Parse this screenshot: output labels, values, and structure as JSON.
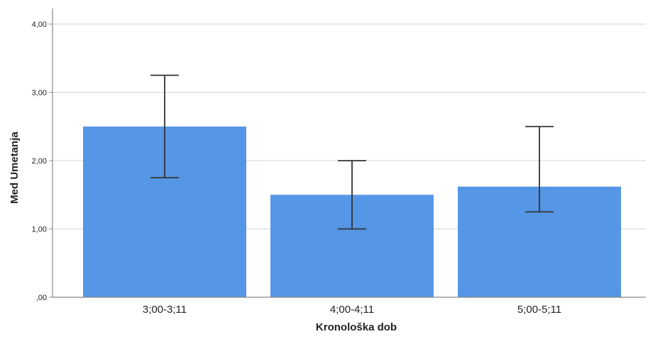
{
  "chart_data": {
    "type": "bar",
    "xlabel": "Kronološka dob",
    "ylabel": "Med Umetanja",
    "categories": [
      "3;00-3;11",
      "4;00-4;11",
      "5;00-5;11"
    ],
    "values": [
      2.5,
      1.5,
      1.62
    ],
    "error_bars": {
      "lower": [
        1.75,
        1.0,
        1.25
      ],
      "upper": [
        3.25,
        2.0,
        2.5
      ]
    },
    "ylim": [
      0,
      4
    ],
    "y_ticks": [
      0,
      1,
      2,
      3,
      4
    ],
    "y_tick_labels": [
      ",00",
      "1,00",
      "2,00",
      "3,00",
      "4,00"
    ],
    "grid": true,
    "colors": {
      "bar": "#5596e6",
      "grid": "#dcdcdc",
      "error": "#333333",
      "axis": "#888888"
    }
  }
}
